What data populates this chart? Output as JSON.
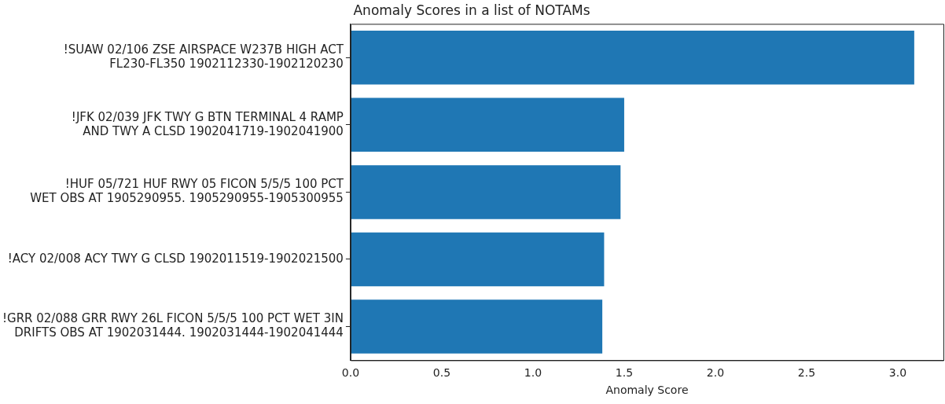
{
  "chart_data": {
    "type": "bar",
    "orientation": "horizontal",
    "title": "Anomaly Scores in a list of NOTAMs",
    "xlabel": "Anomaly Score",
    "categories": [
      "!SUAW 02/106 ZSE AIRSPACE W237B HIGH ACT\nFL230-FL350 1902112330-1902120230",
      "!JFK 02/039 JFK TWY G BTN TERMINAL 4 RAMP\nAND TWY A CLSD 1902041719-1902041900",
      "!HUF 05/721 HUF RWY 05 FICON 5/5/5 100 PCT\nWET OBS AT 1905290955. 1905290955-1905300955",
      "!ACY 02/008 ACY TWY G CLSD 1902011519-1902021500",
      "!GRR 02/088 GRR RWY 26L FICON 5/5/5 100 PCT WET 3IN\nDRIFTS OBS AT 1902031444. 1902031444-1902041444"
    ],
    "values": [
      3.09,
      1.5,
      1.48,
      1.39,
      1.38
    ],
    "color": "#1f77b4",
    "xlim": [
      0,
      3.25
    ],
    "xticks": [
      {
        "value": 0,
        "label": "0.0"
      },
      {
        "value": 0.5,
        "label": "0.5"
      },
      {
        "value": 1,
        "label": "1.0"
      },
      {
        "value": 1.5,
        "label": "1.5"
      },
      {
        "value": 2,
        "label": "2.0"
      },
      {
        "value": 2.5,
        "label": "2.5"
      },
      {
        "value": 3,
        "label": "3.0"
      }
    ],
    "grid": false,
    "legend": false
  }
}
